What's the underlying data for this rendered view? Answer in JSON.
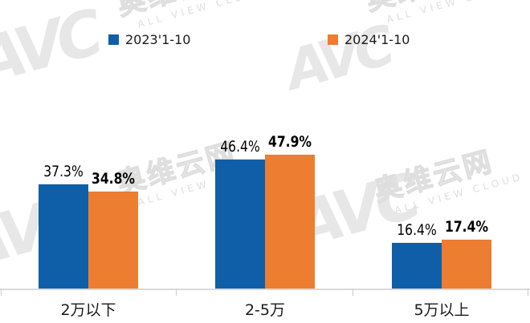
{
  "watermark": {
    "brand": "AVC",
    "brand_cn": "奥维云网",
    "brand_en": "ALL VIEW CLOUD"
  },
  "legend": {
    "items": [
      {
        "label": "2023'1-10",
        "color": "#0E5FA8"
      },
      {
        "label": "2024'1-10",
        "color": "#ED7D31"
      }
    ]
  },
  "chart_data": {
    "type": "bar",
    "categories": [
      "2万以下",
      "2-5万",
      "5万以上"
    ],
    "series": [
      {
        "name": "2023'1-10",
        "color": "#0E5FA8",
        "values": [
          37.3,
          46.4,
          16.4
        ],
        "labels": [
          "37.3%",
          "46.4%",
          "16.4%"
        ]
      },
      {
        "name": "2024'1-10",
        "color": "#ED7D31",
        "values": [
          34.8,
          47.9,
          17.4
        ],
        "labels": [
          "34.8%",
          "47.9%",
          "17.4%"
        ]
      }
    ],
    "unit": "%",
    "ylim": [
      0,
      60
    ],
    "grid": false,
    "legend_position": "top",
    "value_labels": true
  }
}
